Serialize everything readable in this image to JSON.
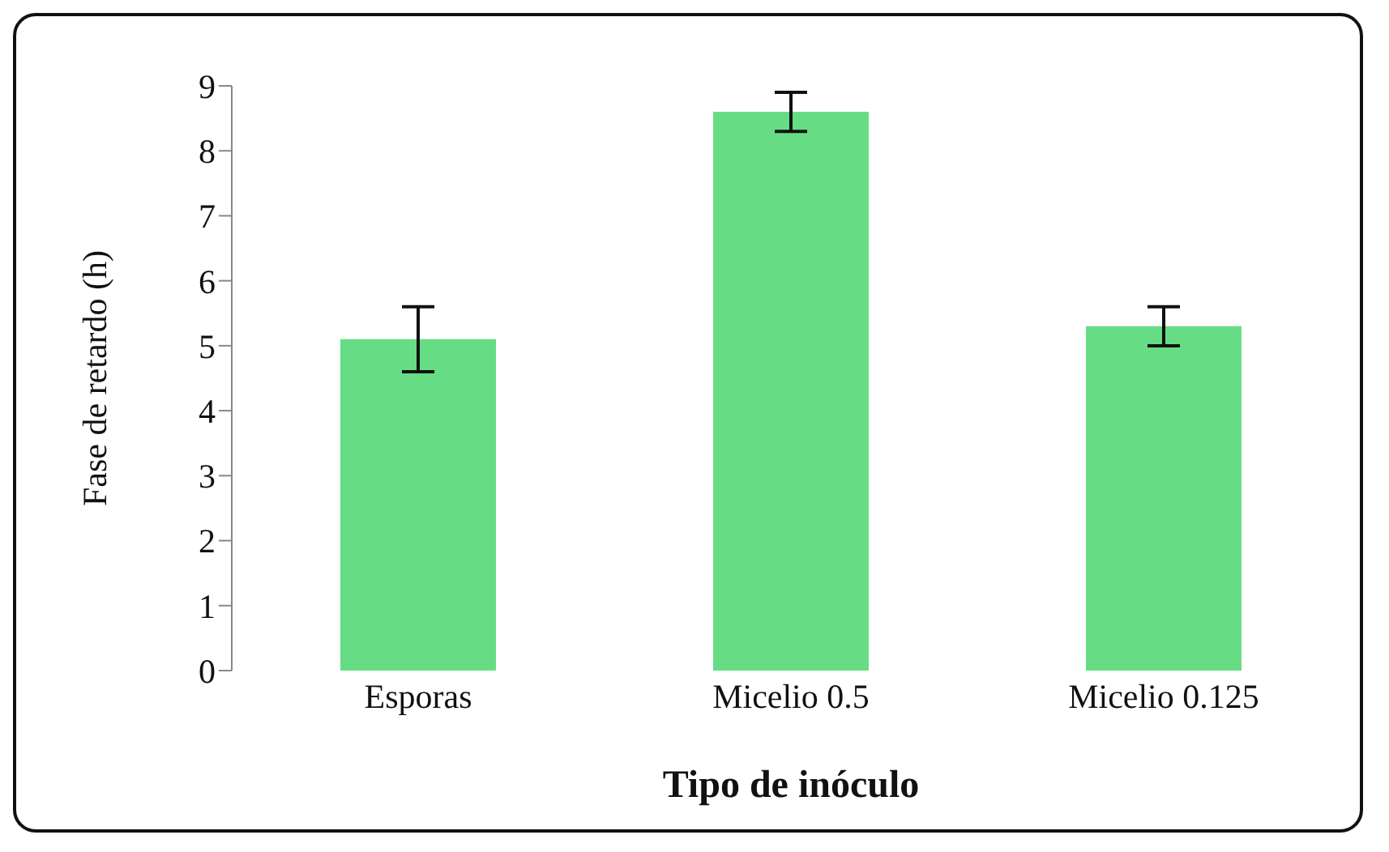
{
  "chart_data": {
    "type": "bar",
    "xlabel": "Tipo de inóculo",
    "ylabel": "Fase de retardo (h)",
    "categories": [
      "Esporas",
      "Micelio 0.5",
      "Micelio 0.125"
    ],
    "values": [
      5.1,
      8.6,
      5.3
    ],
    "errors": [
      0.5,
      0.3,
      0.3
    ],
    "color": "#66dd84",
    "ylim": [
      0,
      9
    ],
    "yticks": [
      0,
      1,
      2,
      3,
      4,
      5,
      6,
      7,
      8,
      9
    ],
    "grid": false,
    "legend": false
  }
}
